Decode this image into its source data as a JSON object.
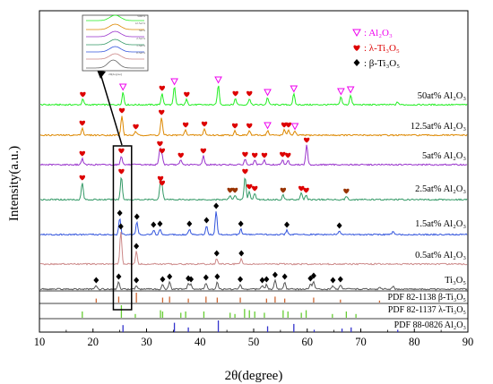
{
  "chart_data": {
    "type": "line",
    "xlabel": "2θ(degree)",
    "ylabel": "Intensity(a.u.)",
    "xlim": [
      10,
      90
    ],
    "x_ticks": [
      "10",
      "20",
      "30",
      "40",
      "50",
      "60",
      "70",
      "80",
      "90"
    ],
    "legend": {
      "placement": "top-right",
      "entries": [
        {
          "marker": "▽",
          "label": "Al₂O₃",
          "color": "#ee00ee"
        },
        {
          "marker": "♥",
          "label": "λ-Ti₃O₅",
          "color": "#dd0000"
        },
        {
          "marker": "◆",
          "label": "β-Ti₃O₅",
          "color": "#000000"
        }
      ]
    },
    "series": [
      {
        "name": "50at% Al₂O₃",
        "color": "#22ee22",
        "peaks": [
          [
            18.1,
            6
          ],
          [
            25.6,
            14
          ],
          [
            32.9,
            13
          ],
          [
            35.2,
            20
          ],
          [
            37.5,
            6
          ],
          [
            43.4,
            22
          ],
          [
            46.6,
            7
          ],
          [
            49.2,
            7
          ],
          [
            52.6,
            8
          ],
          [
            57.5,
            12
          ],
          [
            66.3,
            9
          ],
          [
            68.1,
            11
          ],
          [
            76.9,
            3
          ]
        ],
        "markers": [
          {
            "x": 18.1,
            "m": "heart"
          },
          {
            "x": 25.6,
            "m": "tri"
          },
          {
            "x": 32.9,
            "m": "heart"
          },
          {
            "x": 35.2,
            "m": "tri"
          },
          {
            "x": 37.5,
            "m": "heart"
          },
          {
            "x": 43.4,
            "m": "tri"
          },
          {
            "x": 46.6,
            "m": "heart"
          },
          {
            "x": 49.2,
            "m": "heart"
          },
          {
            "x": 52.6,
            "m": "tri"
          },
          {
            "x": 57.5,
            "m": "tri"
          },
          {
            "x": 66.3,
            "m": "tri"
          },
          {
            "x": 68.1,
            "m": "tri"
          }
        ]
      },
      {
        "name": "12.5at% Al₂O₃",
        "color": "#dd8800",
        "peaks": [
          [
            18.0,
            8
          ],
          [
            25.4,
            22
          ],
          [
            28.0,
            4
          ],
          [
            32.8,
            20
          ],
          [
            37.3,
            6
          ],
          [
            40.8,
            7
          ],
          [
            46.5,
            5
          ],
          [
            49.2,
            5
          ],
          [
            52.6,
            5
          ],
          [
            55.7,
            6
          ],
          [
            56.5,
            6
          ],
          [
            57.7,
            4
          ]
        ],
        "markers": [
          {
            "x": 18.0,
            "m": "heart"
          },
          {
            "x": 25.4,
            "m": "heart"
          },
          {
            "x": 28.0,
            "m": "heart"
          },
          {
            "x": 32.8,
            "m": "heart"
          },
          {
            "x": 37.3,
            "m": "heart"
          },
          {
            "x": 40.8,
            "m": "heart"
          },
          {
            "x": 46.5,
            "m": "heart"
          },
          {
            "x": 49.2,
            "m": "heart"
          },
          {
            "x": 52.6,
            "m": "tri"
          },
          {
            "x": 55.7,
            "m": "heart"
          },
          {
            "x": 56.5,
            "m": "heart"
          },
          {
            "x": 57.7,
            "m": "tri"
          }
        ]
      },
      {
        "name": "5at% Al₂O₃",
        "color": "#9933cc",
        "peaks": [
          [
            18.0,
            7
          ],
          [
            25.3,
            10
          ],
          [
            32.5,
            18
          ],
          [
            32.9,
            10
          ],
          [
            36.4,
            5
          ],
          [
            40.6,
            10
          ],
          [
            48.4,
            6
          ],
          [
            50.2,
            5
          ],
          [
            52.0,
            5
          ],
          [
            55.4,
            6
          ],
          [
            56.4,
            5
          ],
          [
            59.9,
            22
          ]
        ],
        "markers": [
          {
            "x": 18.0,
            "m": "heart"
          },
          {
            "x": 25.3,
            "m": "heart"
          },
          {
            "x": 32.5,
            "m": "heart"
          },
          {
            "x": 32.9,
            "m": "heart"
          },
          {
            "x": 36.4,
            "m": "heart"
          },
          {
            "x": 40.6,
            "m": "heart"
          },
          {
            "x": 48.4,
            "m": "heart"
          },
          {
            "x": 50.2,
            "m": "heart"
          },
          {
            "x": 52.0,
            "m": "heart"
          },
          {
            "x": 55.4,
            "m": "heart"
          },
          {
            "x": 56.4,
            "m": "heart"
          },
          {
            "x": 59.9,
            "m": "heart"
          }
        ]
      },
      {
        "name": "2.5at% Al₂O₃",
        "color": "#339966",
        "peaks": [
          [
            18.0,
            19
          ],
          [
            25.3,
            26
          ],
          [
            32.6,
            18
          ],
          [
            32.9,
            13
          ],
          [
            45.6,
            5
          ],
          [
            46.5,
            5
          ],
          [
            48.4,
            26
          ],
          [
            49.2,
            9
          ],
          [
            50.2,
            7
          ],
          [
            55.5,
            5
          ],
          [
            58.9,
            7
          ],
          [
            59.8,
            5
          ],
          [
            67.3,
            4
          ]
        ],
        "markers": [
          {
            "x": 18.0,
            "m": "heart"
          },
          {
            "x": 25.3,
            "m": "heart"
          },
          {
            "x": 32.6,
            "m": "heart"
          },
          {
            "x": 32.9,
            "m": "heart"
          },
          {
            "x": 45.6,
            "m": "heart2"
          },
          {
            "x": 46.5,
            "m": "heart2"
          },
          {
            "x": 48.4,
            "m": "heart"
          },
          {
            "x": 49.2,
            "m": "heart"
          },
          {
            "x": 50.2,
            "m": "heart"
          },
          {
            "x": 55.5,
            "m": "heart2"
          },
          {
            "x": 58.9,
            "m": "heart"
          },
          {
            "x": 59.8,
            "m": "heart"
          },
          {
            "x": 67.3,
            "m": "heart2"
          }
        ]
      },
      {
        "name": "1.5at% Al₂O₃",
        "color": "#3355dd",
        "peaks": [
          [
            25.0,
            18
          ],
          [
            28.2,
            14
          ],
          [
            31.3,
            5
          ],
          [
            32.5,
            6
          ],
          [
            38.0,
            6
          ],
          [
            41.2,
            10
          ],
          [
            43.0,
            26
          ],
          [
            47.6,
            6
          ],
          [
            56.2,
            5
          ],
          [
            66.0,
            4
          ],
          [
            76.0,
            3
          ]
        ],
        "markers": [
          {
            "x": 25.0,
            "m": "dia"
          },
          {
            "x": 28.2,
            "m": "dia"
          },
          {
            "x": 31.3,
            "m": "dia"
          },
          {
            "x": 32.5,
            "m": "dia"
          },
          {
            "x": 38.0,
            "m": "dia"
          },
          {
            "x": 41.2,
            "m": "dia"
          },
          {
            "x": 43.0,
            "m": "dia"
          },
          {
            "x": 47.6,
            "m": "dia"
          },
          {
            "x": 56.2,
            "m": "dia"
          },
          {
            "x": 66.0,
            "m": "dia"
          }
        ]
      },
      {
        "name": "0.5at% Al₂O₃",
        "color": "#cc8888",
        "peaks": [
          [
            25.2,
            36
          ],
          [
            28.1,
            14
          ],
          [
            43.1,
            6
          ],
          [
            47.7,
            6
          ]
        ],
        "markers": [
          {
            "x": 25.2,
            "m": "dia"
          },
          {
            "x": 28.1,
            "m": "dia"
          },
          {
            "x": 43.1,
            "m": "dia"
          },
          {
            "x": 47.7,
            "m": "dia"
          }
        ]
      },
      {
        "name": "Ti₃O₅",
        "color": "#555555",
        "peaks": [
          [
            20.6,
            4
          ],
          [
            24.8,
            8
          ],
          [
            28.1,
            4
          ],
          [
            33.0,
            5
          ],
          [
            34.3,
            8
          ],
          [
            37.8,
            6
          ],
          [
            38.3,
            5
          ],
          [
            41.1,
            7
          ],
          [
            43.2,
            8
          ],
          [
            47.5,
            5
          ],
          [
            51.6,
            4
          ],
          [
            52.4,
            5
          ],
          [
            54.0,
            10
          ],
          [
            55.8,
            8
          ],
          [
            60.6,
            6
          ],
          [
            61.2,
            9
          ],
          [
            64.8,
            4
          ],
          [
            66.2,
            5
          ],
          [
            73.5,
            2
          ],
          [
            76.0,
            3
          ]
        ],
        "markers": [
          {
            "x": 20.6,
            "m": "dia"
          },
          {
            "x": 24.8,
            "m": "dia"
          },
          {
            "x": 28.1,
            "m": "dia"
          },
          {
            "x": 33.0,
            "m": "dia"
          },
          {
            "x": 34.3,
            "m": "dia"
          },
          {
            "x": 37.8,
            "m": "dia"
          },
          {
            "x": 38.3,
            "m": "dia"
          },
          {
            "x": 41.1,
            "m": "dia"
          },
          {
            "x": 43.2,
            "m": "dia"
          },
          {
            "x": 47.5,
            "m": "dia"
          },
          {
            "x": 51.6,
            "m": "dia"
          },
          {
            "x": 52.4,
            "m": "dia"
          },
          {
            "x": 54.0,
            "m": "dia"
          },
          {
            "x": 55.8,
            "m": "dia"
          },
          {
            "x": 60.6,
            "m": "dia"
          },
          {
            "x": 61.2,
            "m": "dia"
          },
          {
            "x": 64.8,
            "m": "dia"
          },
          {
            "x": 66.2,
            "m": "dia"
          }
        ]
      }
    ],
    "pdf_refs": [
      {
        "label": "PDF 82-1138 β-Ti₃O₅",
        "color": "#cc6633",
        "sticks": [
          [
            20.6,
            0.4
          ],
          [
            24.8,
            0.6
          ],
          [
            28.1,
            1.0
          ],
          [
            33.0,
            0.5
          ],
          [
            34.3,
            0.6
          ],
          [
            37.8,
            0.4
          ],
          [
            41.1,
            0.6
          ],
          [
            43.2,
            0.5
          ],
          [
            47.5,
            0.5
          ],
          [
            52.4,
            0.4
          ],
          [
            54.0,
            0.6
          ],
          [
            55.8,
            0.4
          ],
          [
            61.2,
            0.5
          ],
          [
            66.2,
            0.3
          ],
          [
            73.5,
            0.2
          ]
        ]
      },
      {
        "label": "PDF 82-1137 λ-Ti₃O₅",
        "color": "#66cc33",
        "sticks": [
          [
            18.0,
            0.5
          ],
          [
            25.3,
            1.0
          ],
          [
            27.9,
            0.3
          ],
          [
            32.6,
            0.6
          ],
          [
            33.0,
            0.5
          ],
          [
            36.4,
            0.4
          ],
          [
            37.3,
            0.5
          ],
          [
            40.7,
            0.5
          ],
          [
            45.6,
            0.4
          ],
          [
            46.5,
            0.3
          ],
          [
            48.3,
            0.7
          ],
          [
            49.2,
            0.6
          ],
          [
            50.2,
            0.5
          ],
          [
            52.0,
            0.4
          ],
          [
            55.5,
            0.6
          ],
          [
            56.4,
            0.5
          ],
          [
            58.9,
            0.4
          ],
          [
            59.8,
            0.6
          ],
          [
            64.7,
            0.3
          ],
          [
            67.3,
            0.5
          ],
          [
            69.1,
            0.3
          ]
        ]
      },
      {
        "label": "PDF 88-0826 Al₂O₃",
        "color": "#3333cc",
        "sticks": [
          [
            25.6,
            0.6
          ],
          [
            35.2,
            0.8
          ],
          [
            37.8,
            0.4
          ],
          [
            43.4,
            1.0
          ],
          [
            52.6,
            0.5
          ],
          [
            57.5,
            0.7
          ],
          [
            61.3,
            0.2
          ],
          [
            66.5,
            0.3
          ],
          [
            68.2,
            0.4
          ],
          [
            76.9,
            0.2
          ]
        ]
      }
    ],
    "inset": {
      "labels": [
        "50at%",
        "12.5at%",
        "5at%",
        "2.5at%",
        "1.5at%",
        "0.5at%"
      ],
      "x_label": "2θ(degree)"
    }
  }
}
